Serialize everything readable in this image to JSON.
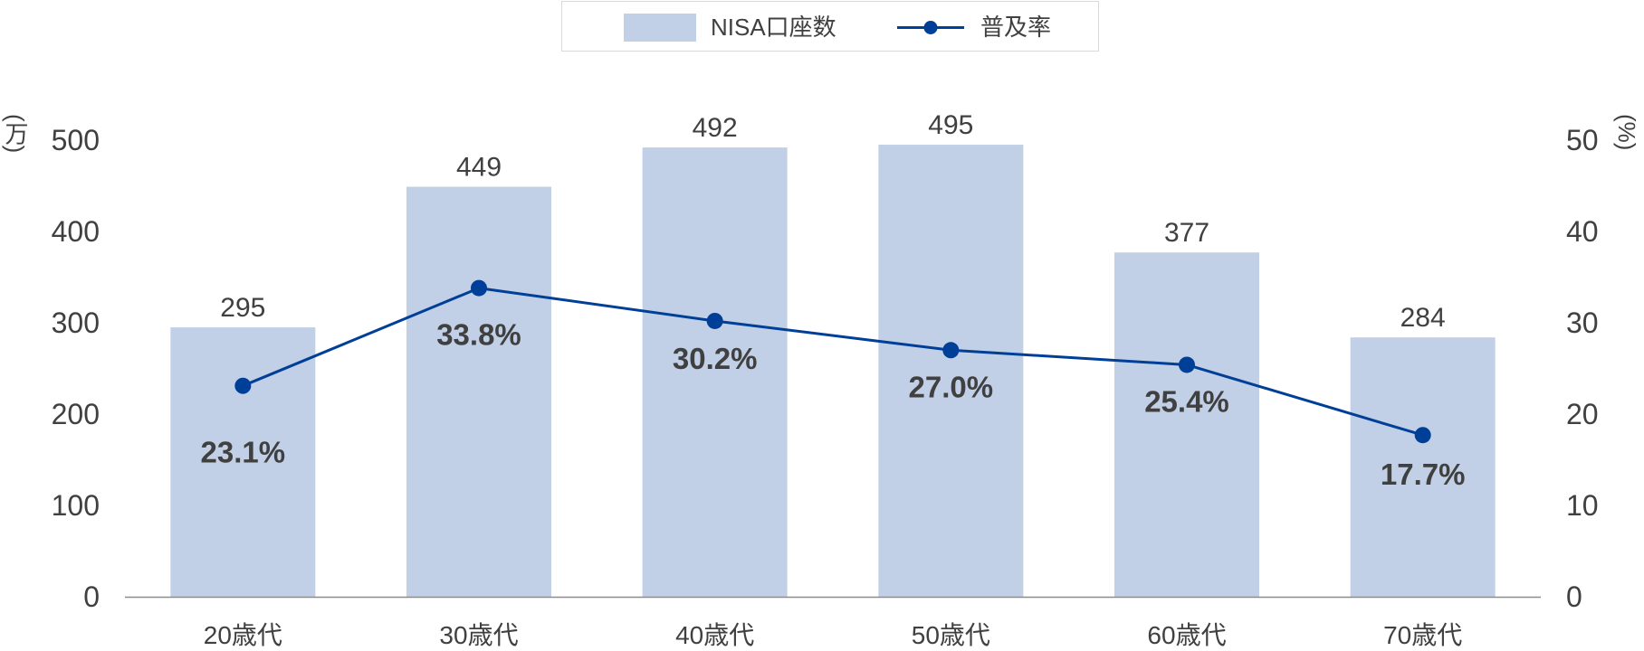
{
  "chart_data": {
    "type": "bar+line",
    "categories": [
      "20歳代",
      "30歳代",
      "40歳代",
      "50歳代",
      "60歳代",
      "70歳代"
    ],
    "series": [
      {
        "name": "NISA口座数",
        "type": "bar",
        "axis": "left",
        "values": [
          295,
          449,
          492,
          495,
          377,
          284
        ],
        "labels": [
          "295",
          "449",
          "492",
          "495",
          "377",
          "284"
        ],
        "color": "#c1d0e6"
      },
      {
        "name": "普及率",
        "type": "line",
        "axis": "right",
        "values": [
          23.1,
          33.8,
          30.2,
          27.0,
          25.4,
          17.7
        ],
        "labels": [
          "23.1%",
          "33.8%",
          "30.2%",
          "27.0%",
          "25.4%",
          "17.7%"
        ],
        "color": "#003f97"
      }
    ],
    "left_axis": {
      "unit": "(万)",
      "ticks": [
        "0",
        "100",
        "200",
        "300",
        "400",
        "500"
      ],
      "ylim": [
        0,
        500
      ]
    },
    "right_axis": {
      "unit": "(%)",
      "ticks": [
        "0",
        "10",
        "20",
        "30",
        "40",
        "50"
      ],
      "ylim": [
        0,
        50
      ]
    },
    "legend_position": "top-center",
    "grid": false,
    "colors": {
      "text": "#404040",
      "label_dark": "#404040",
      "axis_line": "#8c8c8c"
    }
  }
}
